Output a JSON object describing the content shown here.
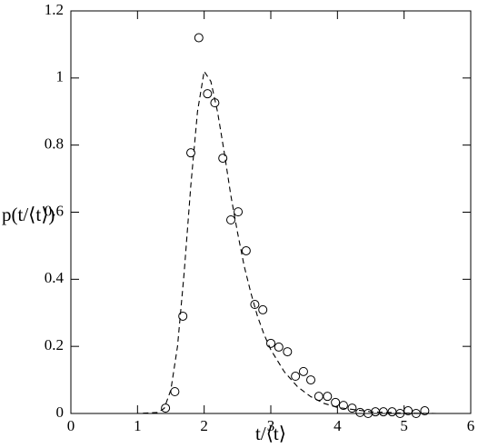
{
  "chart_data": {
    "type": "scatter",
    "xlabel": "t/⟨t⟩",
    "ylabel": "p(t/⟨t⟩)",
    "xlim": [
      0,
      6
    ],
    "ylim": [
      0,
      1.2
    ],
    "xticks": [
      0,
      1,
      2,
      3,
      4,
      5,
      6
    ],
    "yticks": [
      0,
      0.2,
      0.4,
      0.6,
      0.8,
      1,
      1.2
    ],
    "series": [
      {
        "type": "scatter",
        "color": "#000000",
        "x": [
          1.42,
          1.56,
          1.68,
          1.8,
          1.92,
          2.05,
          2.16,
          2.28,
          2.4,
          2.51,
          2.63,
          2.76,
          2.88,
          3.0,
          3.12,
          3.25,
          3.37,
          3.49,
          3.6,
          3.72,
          3.85,
          3.97,
          4.09,
          4.22,
          4.34,
          4.46,
          4.57,
          4.69,
          4.82,
          4.94,
          5.06,
          5.18,
          5.31
        ],
        "values": [
          0.016,
          0.065,
          0.29,
          0.777,
          1.12,
          0.953,
          0.926,
          0.761,
          0.577,
          0.601,
          0.485,
          0.325,
          0.309,
          0.209,
          0.198,
          0.184,
          0.111,
          0.125,
          0.1,
          0.051,
          0.051,
          0.033,
          0.024,
          0.016,
          0.003,
          0,
          0.005,
          0.005,
          0.005,
          0,
          0.008,
          0,
          0.008
        ]
      },
      {
        "type": "line",
        "color": "#000000",
        "dashed": true,
        "x": [
          0.4,
          1.0,
          1.3,
          1.4,
          1.5,
          1.6,
          1.7,
          1.8,
          1.9,
          2.0,
          2.1,
          2.2,
          2.3,
          2.4,
          2.5,
          2.6,
          2.7,
          2.8,
          2.9,
          3.0,
          3.2,
          3.4,
          3.6,
          3.8,
          4.0,
          4.5,
          5.0,
          5.5,
          6.0
        ],
        "values": [
          0,
          0,
          0.003,
          0.015,
          0.07,
          0.2,
          0.42,
          0.68,
          0.9,
          1.02,
          0.99,
          0.9,
          0.78,
          0.65,
          0.54,
          0.44,
          0.36,
          0.29,
          0.235,
          0.19,
          0.125,
          0.08,
          0.05,
          0.03,
          0.018,
          0.005,
          0.001,
          0,
          0
        ]
      }
    ]
  }
}
